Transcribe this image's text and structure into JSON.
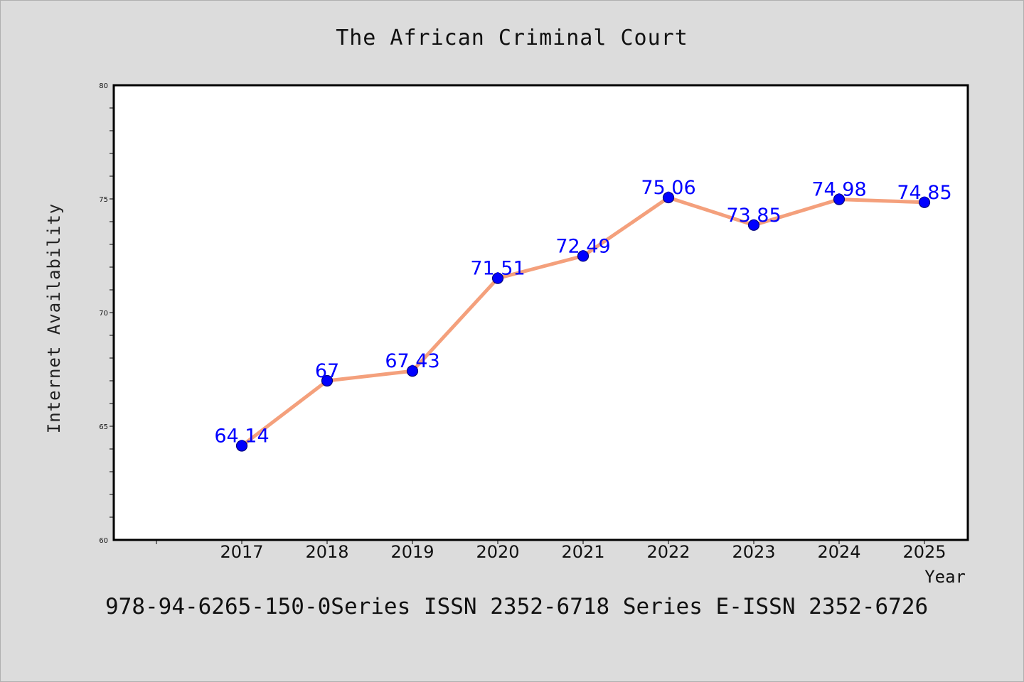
{
  "chart_data": {
    "type": "line",
    "title": "The African Criminal Court",
    "xlabel": "Year",
    "ylabel": "Internet Availability",
    "x": [
      "2017",
      "2018",
      "2019",
      "2020",
      "2021",
      "2022",
      "2023",
      "2024",
      "2025"
    ],
    "values": [
      64.14,
      67,
      67.43,
      71.51,
      72.49,
      75.06,
      73.85,
      74.98,
      74.85
    ],
    "data_labels": [
      "64.14",
      "67",
      "67.43",
      "71.51",
      "72.49",
      "75.06",
      "73.85",
      "74.98",
      "74.85"
    ],
    "ylim": [
      60,
      80
    ],
    "y_ticks": [
      "60",
      "65",
      "70",
      "75",
      "80"
    ],
    "grid": false,
    "line_color": "#f4a07c",
    "marker_color": "#0000ff",
    "label_color": "#0000ff"
  },
  "footer": "978-94-6265-150-0Series ISSN 2352-6718 Series E-ISSN 2352-6726"
}
